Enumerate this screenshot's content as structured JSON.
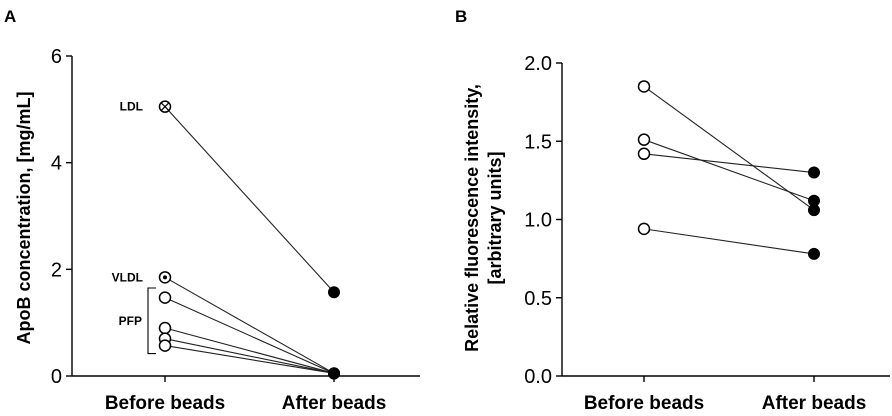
{
  "chart_data": [
    {
      "type": "scatter",
      "panel": "A",
      "categories": [
        "Before beads",
        "After beads"
      ],
      "ylabel": "ApoB concentration, [mg/mL]",
      "ylim": [
        0,
        6
      ],
      "yticks": [
        "0",
        "2",
        "4",
        "6"
      ],
      "grid": false,
      "series": [
        {
          "label": "LDL",
          "values": [
            5.05,
            1.57
          ],
          "before_marker": "crossed-circle",
          "after_marker": "filled"
        },
        {
          "label": "VLDL",
          "values": [
            1.85,
            0.05
          ],
          "before_marker": "dotted-circle",
          "after_marker": "filled"
        },
        {
          "values": [
            1.47,
            0.05
          ],
          "before_marker": "open",
          "after_marker": "filled"
        },
        {
          "values": [
            0.9,
            0.05
          ],
          "before_marker": "open",
          "after_marker": "filled"
        },
        {
          "values": [
            0.7,
            0.05
          ],
          "before_marker": "open",
          "after_marker": "filled"
        },
        {
          "values": [
            0.57,
            0.05
          ],
          "before_marker": "open",
          "after_marker": "filled"
        }
      ],
      "annotations": [
        {
          "text": "PFP",
          "bracket": [
            0.42,
            1.65
          ]
        }
      ]
    },
    {
      "type": "scatter",
      "panel": "B",
      "categories": [
        "Before beads",
        "After beads"
      ],
      "ylabel_lines": [
        "Relative fluorescence intensity,",
        "[arbitrary units]"
      ],
      "ylim": [
        0,
        2
      ],
      "yticks": [
        "0.0",
        "0.5",
        "1.0",
        "1.5",
        "2.0"
      ],
      "grid": false,
      "series": [
        {
          "values": [
            1.85,
            1.06
          ],
          "before_marker": "open",
          "after_marker": "filled"
        },
        {
          "values": [
            1.51,
            1.12
          ],
          "before_marker": "open",
          "after_marker": "filled"
        },
        {
          "values": [
            1.42,
            1.3
          ],
          "before_marker": "open",
          "after_marker": "filled"
        },
        {
          "values": [
            0.94,
            0.78
          ],
          "before_marker": "open",
          "after_marker": "filled"
        }
      ]
    }
  ]
}
